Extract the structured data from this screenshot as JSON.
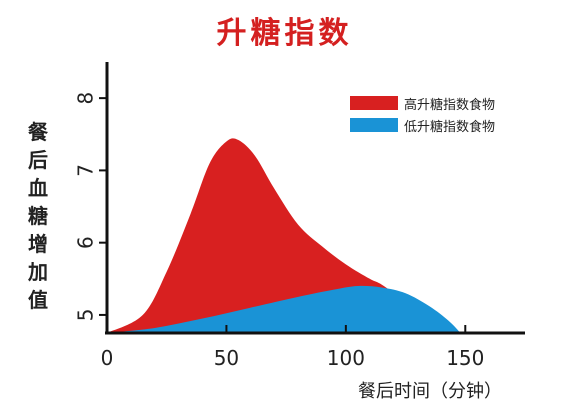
{
  "chart_data": {
    "type": "area",
    "title": "升糖指数",
    "xlabel": "餐后时间（分钟）",
    "ylabel": "餐后血糖增加值",
    "xlim": [
      0,
      175
    ],
    "ylim": [
      4.75,
      8.5
    ],
    "x_ticks": [
      {
        "value": 0,
        "label": "0"
      },
      {
        "value": 50,
        "label": "50"
      },
      {
        "value": 100,
        "label": "100"
      },
      {
        "value": 150,
        "label": "150"
      }
    ],
    "y_ticks": [
      {
        "value": 5,
        "label": "5"
      },
      {
        "value": 6,
        "label": "6"
      },
      {
        "value": 7,
        "label": "7"
      },
      {
        "value": 8,
        "label": "8"
      }
    ],
    "legend_position": "top-right",
    "series": [
      {
        "name": "高升糖指数食物",
        "color": "#d82020",
        "points": [
          [
            0,
            4.75
          ],
          [
            15,
            5.0
          ],
          [
            25,
            5.6
          ],
          [
            35,
            6.4
          ],
          [
            43,
            7.1
          ],
          [
            50,
            7.4
          ],
          [
            55,
            7.42
          ],
          [
            62,
            7.2
          ],
          [
            70,
            6.75
          ],
          [
            80,
            6.25
          ],
          [
            90,
            5.95
          ],
          [
            100,
            5.7
          ],
          [
            110,
            5.5
          ],
          [
            115,
            5.42
          ],
          [
            125,
            5.2
          ],
          [
            140,
            4.95
          ],
          [
            148,
            4.75
          ]
        ]
      },
      {
        "name": "低升糖指数食物",
        "color": "#1a93d6",
        "points": [
          [
            0,
            4.75
          ],
          [
            20,
            4.82
          ],
          [
            40,
            4.95
          ],
          [
            60,
            5.1
          ],
          [
            80,
            5.25
          ],
          [
            95,
            5.35
          ],
          [
            105,
            5.4
          ],
          [
            115,
            5.38
          ],
          [
            125,
            5.3
          ],
          [
            135,
            5.12
          ],
          [
            143,
            4.92
          ],
          [
            148,
            4.75
          ]
        ]
      }
    ]
  }
}
